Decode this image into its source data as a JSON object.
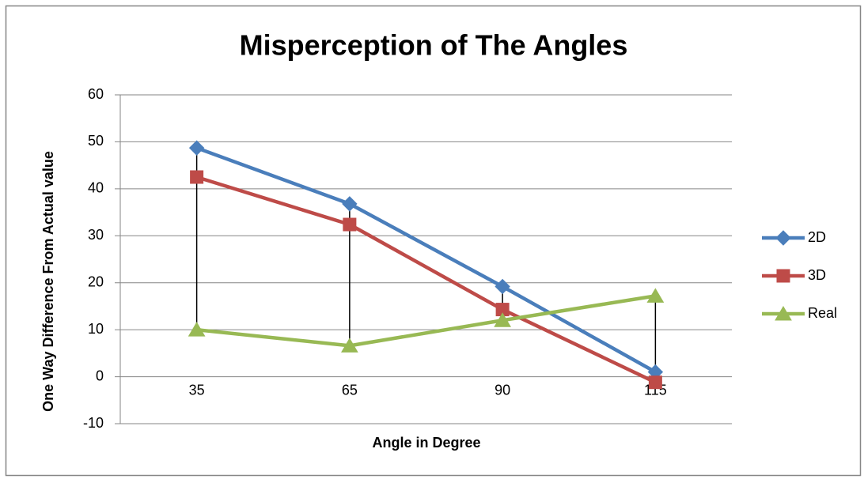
{
  "chart_data": {
    "type": "line",
    "title": "Misperception  of The Angles",
    "x_label": "Angle in Degree",
    "y_label": "One Way Difference From Actual value",
    "categories": [
      "35",
      "65",
      "90",
      "115"
    ],
    "series": [
      {
        "name": "2D",
        "color": "#4a7ebb",
        "marker": "diamond",
        "values": [
          48.7,
          36.8,
          19.2,
          1.0
        ]
      },
      {
        "name": "3D",
        "color": "#be4b48",
        "marker": "square",
        "values": [
          42.5,
          32.4,
          14.3,
          -1.2
        ]
      },
      {
        "name": "Real",
        "color": "#98b954",
        "marker": "triangle",
        "values": [
          10,
          6.6,
          12,
          17.2
        ]
      }
    ],
    "ylim": [
      -10,
      60
    ],
    "yticks": [
      -10,
      0,
      10,
      20,
      30,
      40,
      50,
      60
    ],
    "grid": true,
    "high_low_lines": true,
    "legend": "right"
  }
}
